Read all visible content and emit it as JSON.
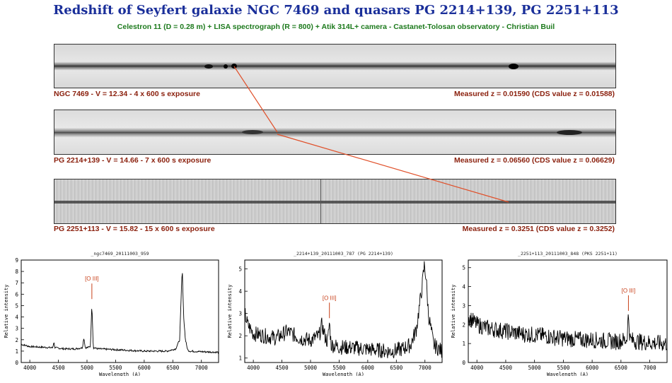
{
  "title": "Redshift of Seyfert galaxie NGC 7469 and quasars PG 2214+139, PG 2251+113",
  "subtitle": "Celestron 11 (D = 0.28 m) + LISA spectrograph (R = 800) + Atik 314L+ camera - Castanet-Tolosan observatory - Christian Buil",
  "spectra_images": [
    {
      "left_label": "NGC 7469  -  V = 12.34  -  4 x 600 s exposure",
      "right_label": "Measured z = 0.01590  (CDS value z = 0.01588)"
    },
    {
      "left_label": "PG 2214+139  -  V = 14.66  -  7 x 600 s exposure",
      "right_label": "Measured z = 0.06560  (CDS value z = 0.06629)"
    },
    {
      "left_label": "PG 2251+113  -  V = 15.82  -  15 x 600 s exposure",
      "right_label": "Measured z = 0.3251  (CDS value z = 0.3252)"
    }
  ],
  "colors": {
    "title": "#1a2f9a",
    "subtitle": "#1d7a1d",
    "labels": "#8a1f0c",
    "connector": "#e0502a",
    "oiii": "#c8401a"
  },
  "chart_data": [
    {
      "type": "line",
      "title": "_ngc7469_20111003_959",
      "xlabel": "Wavelength (A)",
      "ylabel": "Relative intensity",
      "xlim": [
        3850,
        7300
      ],
      "ylim": [
        0,
        9
      ],
      "xticks": [
        4000,
        4500,
        5000,
        5500,
        6000,
        6500,
        7000
      ],
      "yticks": [
        0,
        1,
        2,
        3,
        4,
        5,
        6,
        7,
        8,
        9
      ],
      "annotation": {
        "text": "[O III]",
        "x": 5085
      },
      "series": [
        {
          "x": [
            3850,
            4000,
            4200,
            4400,
            4420,
            4440,
            4600,
            4800,
            4920,
            4945,
            4970,
            5000,
            5060,
            5085,
            5110,
            5200,
            5400,
            5600,
            5800,
            6000,
            6200,
            6400,
            6550,
            6620,
            6650,
            6665,
            6690,
            6720,
            6760,
            6800,
            7000,
            7300
          ],
          "y": [
            1.6,
            1.4,
            1.35,
            1.3,
            1.8,
            1.3,
            1.2,
            1.2,
            1.3,
            2.2,
            1.3,
            1.3,
            1.4,
            5.2,
            1.3,
            1.2,
            1.15,
            1.1,
            1.05,
            1.0,
            1.0,
            1.0,
            1.2,
            2.0,
            6.4,
            8.2,
            4.0,
            2.0,
            1.1,
            1.0,
            0.95,
            0.9
          ]
        }
      ]
    },
    {
      "type": "line",
      "title": "_2214+139_20111003_787 (PG 2214+139)",
      "xlabel": "Wavelength (A)",
      "ylabel": "Relative intensity",
      "xlim": [
        3850,
        7300
      ],
      "ylim": [
        0.8,
        5.4
      ],
      "xticks": [
        4000,
        4500,
        5000,
        5500,
        6000,
        6500,
        7000
      ],
      "yticks": [
        1,
        2,
        3,
        4,
        5
      ],
      "annotation": {
        "text": "[O III]",
        "x": 5330
      },
      "series": [
        {
          "x": [
            3850,
            3900,
            4000,
            4200,
            4400,
            4600,
            4800,
            5000,
            5150,
            5200,
            5250,
            5300,
            5330,
            5360,
            5500,
            5800,
            6000,
            6200,
            6400,
            6600,
            6750,
            6850,
            6950,
            6990,
            7020,
            7060,
            7150,
            7300
          ],
          "y": [
            3.0,
            2.5,
            2.1,
            2.0,
            1.9,
            2.2,
            1.9,
            1.8,
            2.0,
            2.5,
            2.0,
            1.7,
            2.6,
            1.6,
            1.5,
            1.45,
            1.4,
            1.35,
            1.3,
            1.4,
            1.6,
            2.3,
            4.2,
            5.2,
            4.6,
            3.0,
            1.6,
            1.3
          ]
        }
      ]
    },
    {
      "type": "line",
      "title": "_2251+113_20111003_848 (PKS 2251+11)",
      "xlabel": "Wavelength (A)",
      "ylabel": "Relative intensity",
      "xlim": [
        3850,
        7300
      ],
      "ylim": [
        0,
        5.4
      ],
      "xticks": [
        4000,
        4500,
        5000,
        5500,
        6000,
        6500,
        7000
      ],
      "yticks": [
        0,
        1,
        2,
        3,
        4,
        5
      ],
      "annotation": {
        "text": "[O III]",
        "x": 6630
      },
      "series": [
        {
          "x": [
            3850,
            4000,
            4200,
            4400,
            4600,
            4800,
            5000,
            5200,
            5400,
            5600,
            5800,
            6000,
            6200,
            6400,
            6600,
            6630,
            6660,
            6800,
            7000,
            7200,
            7300
          ],
          "y": [
            2.4,
            2.0,
            1.8,
            1.7,
            1.6,
            1.5,
            1.45,
            1.4,
            1.3,
            1.25,
            1.2,
            1.2,
            1.15,
            1.1,
            1.2,
            2.5,
            1.2,
            1.1,
            1.05,
            1.0,
            1.0
          ]
        }
      ]
    }
  ]
}
